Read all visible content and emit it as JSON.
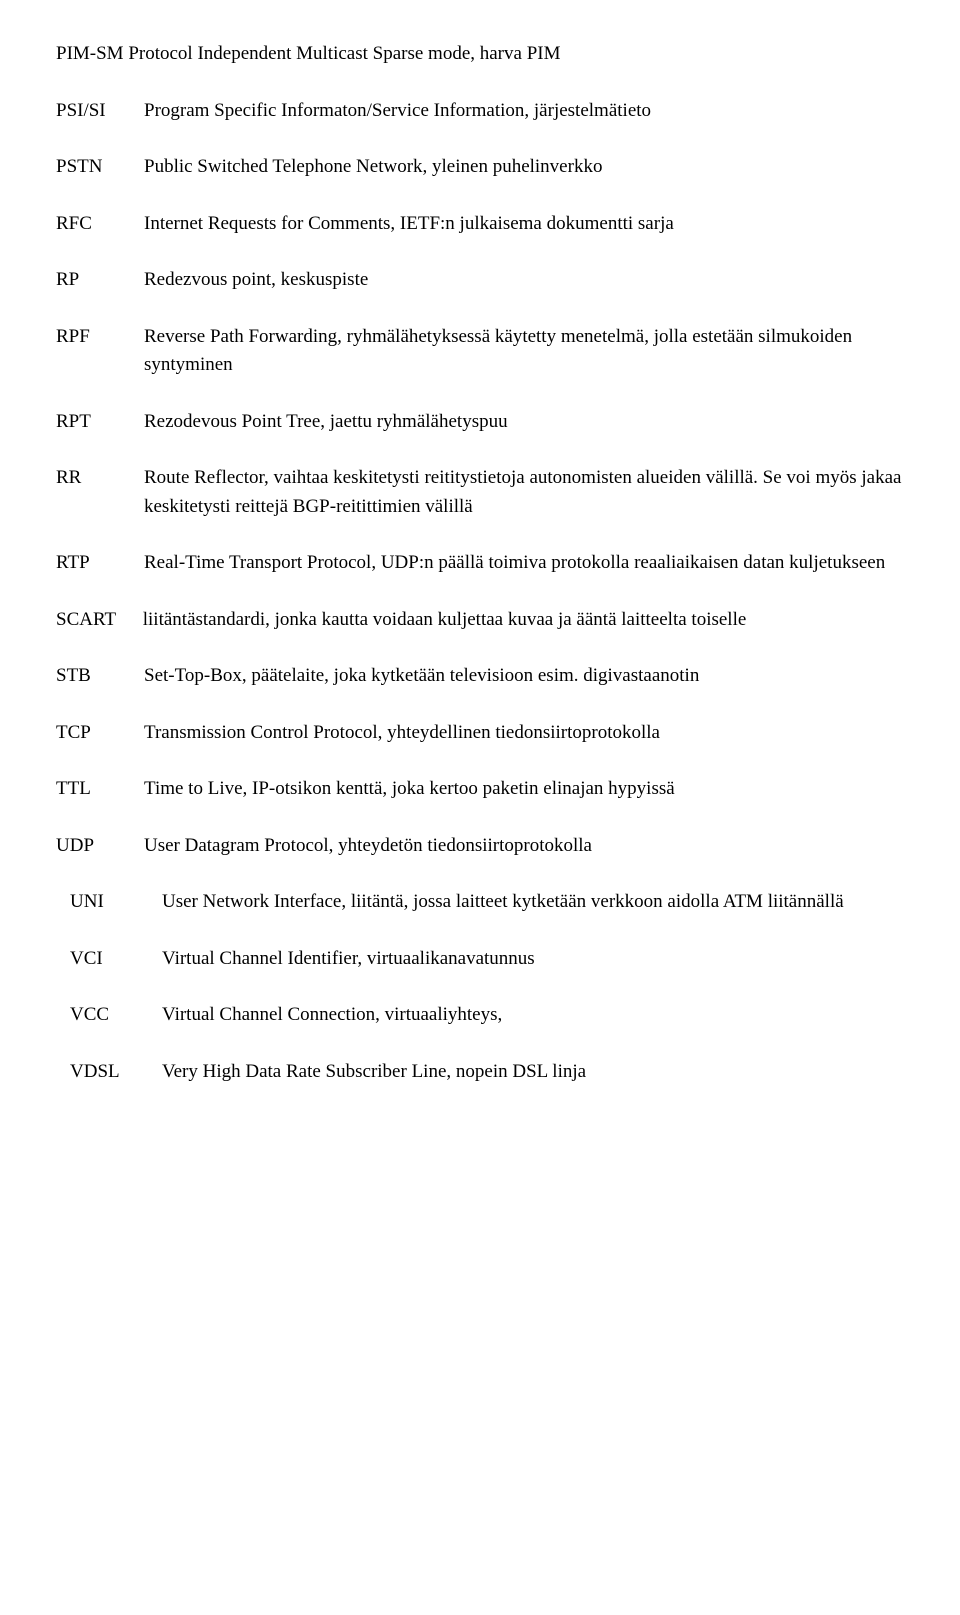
{
  "entries": [
    {
      "abbr": "PIM-SM",
      "def": "Protocol Independent Multicast Sparse mode, harva PIM",
      "inline": true
    },
    {
      "abbr": "PSI/SI",
      "def": "Program Specific Informaton/Service Information, järjestelmätieto"
    },
    {
      "abbr": "PSTN",
      "def": "Public Switched Telephone Network, yleinen puhelinverkko"
    },
    {
      "abbr": "RFC",
      "def": "Internet Requests for Comments, IETF:n julkaisema dokumentti sarja"
    },
    {
      "abbr": "RP",
      "def": "Redezvous point, keskuspiste"
    },
    {
      "abbr": "RPF",
      "def": "Reverse Path Forwarding, ryhmälähetyksessä käytetty menetelmä, jolla estetään silmukoiden syntyminen"
    },
    {
      "abbr": "RPT",
      "def": "Rezodevous Point Tree, jaettu ryhmälähetyspuu"
    },
    {
      "abbr": "RR",
      "def": "Route Reflector, vaihtaa keskitetysti reititystietoja autonomisten alueiden välillä. Se voi myös jakaa keskitetysti reittejä BGP-reitittimien välillä"
    },
    {
      "abbr": "RTP",
      "def": "Real-Time Transport Protocol, UDP:n päällä toimiva protokolla reaaliaikaisen datan kuljetukseen"
    },
    {
      "abbr": "SCART",
      "def": "liitäntästandardi, jonka kautta voidaan kuljettaa kuvaa ja ääntä laitteelta toiselle",
      "inline": true
    },
    {
      "abbr": "STB",
      "def": "Set-Top-Box, päätelaite, joka kytketään televisioon esim. digivastaanotin"
    },
    {
      "abbr": "TCP",
      "def": "Transmission Control Protocol, yhteydellinen tiedonsiirtoprotokolla"
    },
    {
      "abbr": "TTL",
      "def": "Time to Live, IP-otsikon kenttä, joka kertoo paketin elinajan hypyissä"
    },
    {
      "abbr": "UDP",
      "def": "User Datagram Protocol, yhteydetön tiedonsiirtoprotokolla"
    },
    {
      "abbr": "UNI",
      "def": "User Network Interface, liitäntä, jossa laitteet kytketään verkkoon aidolla ATM liitännällä",
      "group": "indent"
    },
    {
      "abbr": "VCI",
      "def": "Virtual Channel Identifier, virtuaalikanavatunnus",
      "group": "indent"
    },
    {
      "abbr": "VCC",
      "def": "Virtual Channel Connection, virtuaaliyhteys,",
      "group": "indent"
    },
    {
      "abbr": "VDSL",
      "def": "Very High Data Rate Subscriber Line, nopein DSL linja",
      "group": "indent"
    }
  ]
}
